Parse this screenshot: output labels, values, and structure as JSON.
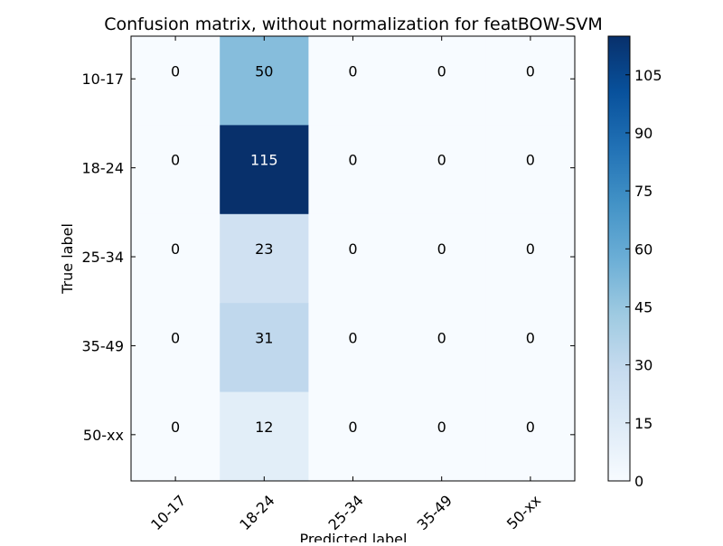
{
  "chart_data": {
    "type": "heatmap",
    "title": "Confusion matrix, without normalization for featBOW-SVM",
    "xlabel": "Predicted label",
    "ylabel": "True label",
    "x_categories": [
      "10-17",
      "18-24",
      "25-34",
      "35-49",
      "50-xx"
    ],
    "y_categories": [
      "10-17",
      "18-24",
      "25-34",
      "35-49",
      "50-xx"
    ],
    "values": [
      [
        0,
        50,
        0,
        0,
        0
      ],
      [
        0,
        115,
        0,
        0,
        0
      ],
      [
        0,
        23,
        0,
        0,
        0
      ],
      [
        0,
        31,
        0,
        0,
        0
      ],
      [
        0,
        12,
        0,
        0,
        0
      ]
    ],
    "colormap": "Blues",
    "colorbar": {
      "range": [
        0,
        115
      ],
      "ticks": [
        0,
        15,
        30,
        45,
        60,
        75,
        90,
        105
      ]
    },
    "grid": false,
    "colors": {
      "low": "#f7fbff",
      "high": "#08306b"
    }
  }
}
